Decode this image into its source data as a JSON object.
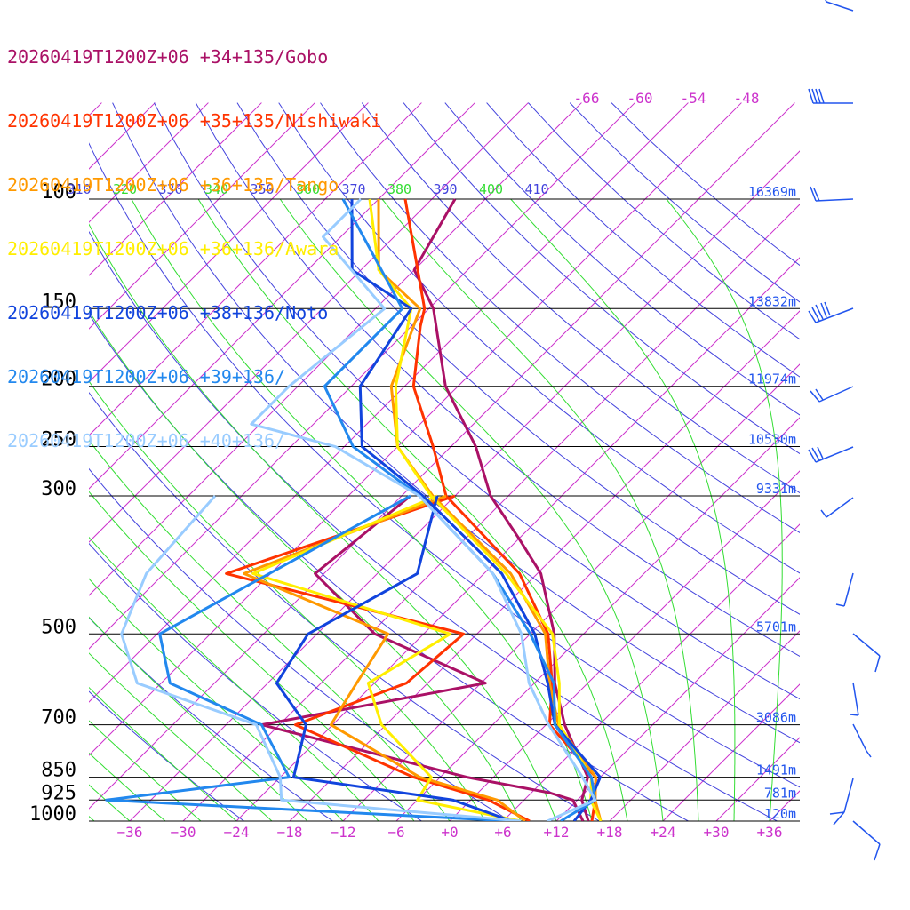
{
  "chart_data": {
    "type": "line",
    "chart_kind": "skew-T log-p sounding",
    "colors": {
      "isobar": "#000000",
      "isotherm": "#cc33cc",
      "dry_adiabat": "#4444dd",
      "moist_adiabat": "#33dd33",
      "height_label": "#2255ee",
      "barb": "#2255ee"
    },
    "pressure_levels": [
      100,
      150,
      200,
      250,
      300,
      500,
      700,
      850,
      925,
      1000
    ],
    "pressure_labels": [
      "100",
      "150",
      "200",
      "250",
      "300",
      "500",
      "700",
      "850",
      "925",
      "1000"
    ],
    "height_labels": [
      "16369m",
      "13832m",
      "11974m",
      "10530m",
      "9331m",
      "5701m",
      "3086m",
      "1491m",
      "781m",
      "120m"
    ],
    "temp_ticks": [
      -36,
      -30,
      -24,
      -18,
      -12,
      -6,
      0,
      6,
      12,
      18,
      24,
      30,
      36
    ],
    "temp_tick_labels": [
      "−36",
      "−30",
      "−24",
      "−18",
      "−12",
      "−6",
      "+0",
      "+6",
      "+12",
      "+18",
      "+24",
      "+30",
      "+36"
    ],
    "upper_isotherm_labels": [
      "-66",
      "-60",
      "-54",
      "-48"
    ],
    "theta_labels": [
      "310",
      "320",
      "330",
      "340",
      "350",
      "360",
      "370",
      "380",
      "390",
      "400",
      "410"
    ],
    "series": [
      {
        "name": "20260419T1200Z+06 +34+135/Gobo",
        "color": "#aa1166",
        "temperature": [
          [
            100,
            -69.4
          ],
          [
            130,
            -66
          ],
          [
            150,
            -59.5
          ],
          [
            200,
            -49.4
          ],
          [
            250,
            -39.2
          ],
          [
            300,
            -32
          ],
          [
            350,
            -24.2
          ],
          [
            400,
            -17.6
          ],
          [
            500,
            -9.3
          ],
          [
            600,
            -3.7
          ],
          [
            700,
            2.1
          ],
          [
            850,
            10.6
          ],
          [
            925,
            12.5
          ],
          [
            1000,
            15.6
          ]
        ],
        "dewpoint": [
          [
            300,
            -41
          ],
          [
            400,
            -43
          ],
          [
            500,
            -29.5
          ],
          [
            600,
            -11.5
          ],
          [
            700,
            -32
          ],
          [
            850,
            -3
          ],
          [
            900,
            8
          ],
          [
            925,
            11.5
          ],
          [
            1000,
            15
          ]
        ]
      },
      {
        "name": "20260419T1200Z+06 +35+135/Nishiwaki",
        "color": "#ff3300",
        "temperature": [
          [
            100,
            -75
          ],
          [
            150,
            -60.5
          ],
          [
            160,
            -59
          ],
          [
            200,
            -53
          ],
          [
            250,
            -44
          ],
          [
            300,
            -37
          ],
          [
            400,
            -20
          ],
          [
            500,
            -10
          ],
          [
            600,
            -4
          ],
          [
            700,
            0.4
          ],
          [
            850,
            11.5
          ],
          [
            925,
            14
          ],
          [
            1000,
            16
          ]
        ],
        "dewpoint": [
          [
            300,
            -36
          ],
          [
            400,
            -53
          ],
          [
            500,
            -19.5
          ],
          [
            600,
            -20.4
          ],
          [
            700,
            -28.2
          ],
          [
            850,
            -9
          ],
          [
            925,
            2
          ],
          [
            1000,
            9
          ]
        ]
      },
      {
        "name": "20260419T1200Z+06 +36+135/Tango",
        "color": "#ff9900",
        "temperature": [
          [
            100,
            -78
          ],
          [
            130,
            -70
          ],
          [
            150,
            -61
          ],
          [
            200,
            -55.5
          ],
          [
            250,
            -48
          ],
          [
            300,
            -38.5
          ],
          [
            400,
            -21
          ],
          [
            500,
            -10.3
          ],
          [
            600,
            -4.3
          ],
          [
            700,
            1.4
          ],
          [
            850,
            11.5
          ],
          [
            925,
            14
          ],
          [
            1000,
            17
          ]
        ],
        "dewpoint": [
          [
            300,
            -37
          ],
          [
            400,
            -51
          ],
          [
            500,
            -28
          ],
          [
            600,
            -26
          ],
          [
            700,
            -24.2
          ],
          [
            850,
            -8.3
          ],
          [
            925,
            3
          ],
          [
            1000,
            8.5
          ]
        ]
      },
      {
        "name": "20260419T1200Z+06 +36+136/Awara",
        "color": "#ffee00",
        "temperature": [
          [
            100,
            -79
          ],
          [
            130,
            -70
          ],
          [
            150,
            -62
          ],
          [
            200,
            -55
          ],
          [
            250,
            -48
          ],
          [
            300,
            -38.7
          ],
          [
            400,
            -21.5
          ],
          [
            500,
            -9.5
          ],
          [
            600,
            -3.2
          ],
          [
            700,
            1.5
          ],
          [
            850,
            11
          ],
          [
            925,
            13.5
          ],
          [
            1000,
            17
          ]
        ],
        "dewpoint": [
          [
            300,
            -38
          ],
          [
            400,
            -50
          ],
          [
            500,
            -21
          ],
          [
            600,
            -24.7
          ],
          [
            700,
            -18.5
          ],
          [
            850,
            -7
          ],
          [
            925,
            -6
          ],
          [
            1000,
            8
          ]
        ]
      },
      {
        "name": "20260419T1200Z+06 +38+136/Noto",
        "color": "#1144dd",
        "temperature": [
          [
            100,
            -81
          ],
          [
            130,
            -73
          ],
          [
            150,
            -62
          ],
          [
            200,
            -59
          ],
          [
            250,
            -52
          ],
          [
            300,
            -39.6
          ],
          [
            400,
            -22
          ],
          [
            500,
            -11.5
          ],
          [
            600,
            -4.5
          ],
          [
            700,
            1
          ],
          [
            850,
            12
          ],
          [
            925,
            13.5
          ],
          [
            1000,
            14
          ]
        ],
        "dewpoint": [
          [
            300,
            -38
          ],
          [
            400,
            -31.5
          ],
          [
            500,
            -37
          ],
          [
            600,
            -35
          ],
          [
            700,
            -27
          ],
          [
            850,
            -22.5
          ],
          [
            925,
            -2
          ],
          [
            1000,
            7
          ]
        ]
      },
      {
        "name": "20260419T1200Z+06 +39+136/",
        "color": "#2288ee",
        "temperature": [
          [
            100,
            -82
          ],
          [
            150,
            -63
          ],
          [
            200,
            -63
          ],
          [
            250,
            -53
          ],
          [
            300,
            -40
          ],
          [
            400,
            -23
          ],
          [
            500,
            -12
          ],
          [
            600,
            -3.8
          ],
          [
            700,
            1
          ],
          [
            850,
            11
          ],
          [
            925,
            14
          ],
          [
            1000,
            12.5
          ]
        ],
        "dewpoint": [
          [
            300,
            -41
          ],
          [
            500,
            -53.7
          ],
          [
            600,
            -47
          ],
          [
            700,
            -32
          ],
          [
            850,
            -23
          ],
          [
            925,
            -41
          ],
          [
            1000,
            7
          ]
        ]
      },
      {
        "name": "20260419T1200Z+06 +40+136/",
        "color": "#99ccff",
        "temperature": [
          [
            100,
            -80
          ],
          [
            115,
            -80
          ],
          [
            150,
            -65
          ],
          [
            200,
            -67
          ],
          [
            230,
            -67
          ],
          [
            250,
            -55
          ],
          [
            300,
            -40
          ],
          [
            400,
            -23
          ],
          [
            500,
            -13
          ],
          [
            600,
            -6.6
          ],
          [
            700,
            0.3
          ],
          [
            850,
            10
          ],
          [
            925,
            14
          ],
          [
            1000,
            11
          ]
        ],
        "dewpoint": [
          [
            300,
            -63
          ],
          [
            400,
            -62
          ],
          [
            500,
            -58
          ],
          [
            600,
            -50.7
          ],
          [
            700,
            -32.6
          ],
          [
            850,
            -24
          ],
          [
            925,
            -21.3
          ],
          [
            1000,
            8
          ]
        ]
      }
    ]
  }
}
